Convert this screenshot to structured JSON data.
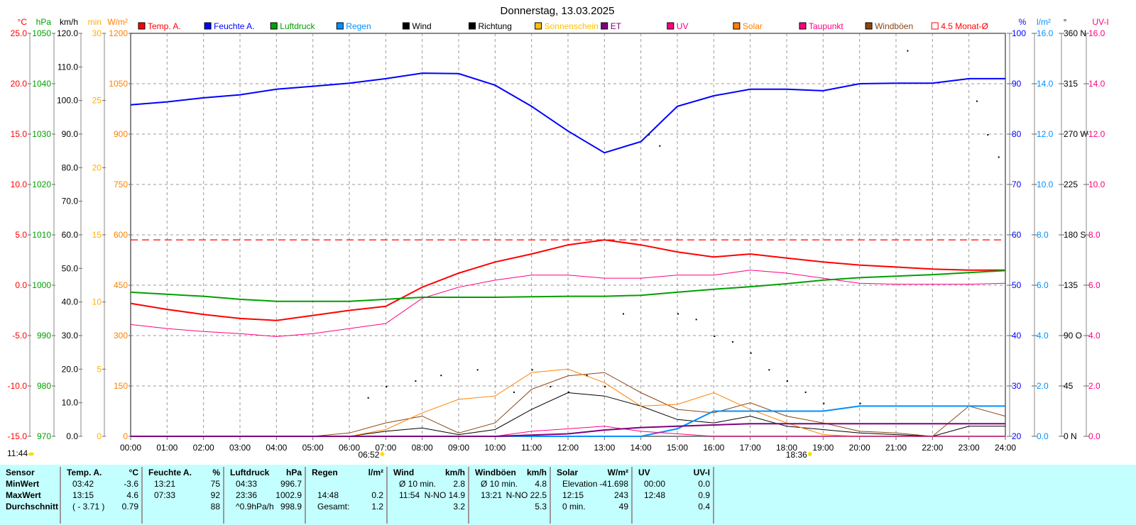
{
  "chart_data": {
    "type": "line",
    "title": "Donnerstag, 13.03.2025",
    "x_label_ticks": [
      "00:00",
      "01:00",
      "02:00",
      "03:00",
      "04:00",
      "05:00",
      "06:00",
      "07:00",
      "08:00",
      "09:00",
      "10:00",
      "11:00",
      "12:00",
      "13:00",
      "14:00",
      "15:00",
      "16:00",
      "17:00",
      "18:00",
      "19:00",
      "20:00",
      "21:00",
      "22:00",
      "23:00",
      "24:00"
    ],
    "axes": {
      "temp": {
        "unit": "°C",
        "color": "#ff0000",
        "range": [
          -15,
          25
        ],
        "ticks": [
          "25.0",
          "20.0",
          "15.0",
          "10.0",
          "5.0",
          "0.0",
          "-5.0",
          "-10.0",
          "-15.0"
        ]
      },
      "pressure": {
        "unit": "hPa",
        "color": "#00a000",
        "range": [
          970,
          1050
        ],
        "ticks": [
          "1050",
          "1040",
          "1030",
          "1020",
          "1010",
          "1000",
          "990",
          "980",
          "970"
        ]
      },
      "wind": {
        "unit": "km/h",
        "color": "#000000",
        "range": [
          0,
          120
        ],
        "ticks": [
          "120.0",
          "110.0",
          "100.0",
          "90.0",
          "80.0",
          "70.0",
          "60.0",
          "50.0",
          "40.0",
          "30.0",
          "20.0",
          "10.0",
          "0.0"
        ]
      },
      "sunshine": {
        "unit": "min",
        "color": "#ffb000",
        "range": [
          0,
          30
        ],
        "ticks": [
          "30",
          "25",
          "20",
          "15",
          "10",
          "5",
          "0"
        ]
      },
      "solar": {
        "unit": "W/m²",
        "color": "#ff8000",
        "range": [
          0,
          1200
        ],
        "ticks": [
          "1200",
          "1050",
          "900",
          "750",
          "600",
          "450",
          "300",
          "150",
          "0"
        ]
      },
      "humidity": {
        "unit": "%",
        "color": "#0000ff",
        "range": [
          20,
          100
        ],
        "ticks": [
          "100",
          "90",
          "80",
          "70",
          "60",
          "50",
          "40",
          "30",
          "20"
        ]
      },
      "rain": {
        "unit": "l/m²",
        "color": "#0090ff",
        "range": [
          0,
          16
        ],
        "ticks": [
          "16.0",
          "14.0",
          "12.0",
          "10.0",
          "8.0",
          "6.0",
          "4.0",
          "2.0",
          "0.0"
        ]
      },
      "direction": {
        "unit": "°",
        "color": "#000000",
        "range": [
          0,
          360
        ],
        "ticks": [
          "360 N",
          "315",
          "270 W",
          "225",
          "180 S",
          "135",
          "90 O",
          "45",
          "0 N"
        ]
      },
      "uv": {
        "unit": "UV-I",
        "color": "#ff0080",
        "range": [
          0,
          16
        ],
        "ticks": [
          "16.0",
          "14.0",
          "12.0",
          "10.0",
          "8.0",
          "6.0",
          "4.0",
          "2.0",
          "0.0"
        ]
      }
    },
    "legend": [
      {
        "label": "Temp. A.",
        "color": "#ff0000"
      },
      {
        "label": "Feuchte A.",
        "color": "#0000ff"
      },
      {
        "label": "Luftdruck",
        "color": "#00a000"
      },
      {
        "label": "Regen",
        "color": "#0090ff"
      },
      {
        "label": "Wind",
        "color": "#000000"
      },
      {
        "label": "Richtung",
        "color": "#000000"
      },
      {
        "label": "Sonnenschein",
        "color": "#ffc000"
      },
      {
        "label": "ET",
        "color": "#800080"
      },
      {
        "label": "UV",
        "color": "#ff0080"
      },
      {
        "label": "Solar",
        "color": "#ff8000"
      },
      {
        "label": "Taupunkt",
        "color": "#ff0080"
      },
      {
        "label": "Windböen",
        "color": "#8b4513"
      },
      {
        "label": "4.5 Monat-Ø",
        "color": "#ff0000",
        "outline": true
      }
    ],
    "hours": [
      0,
      1,
      2,
      3,
      4,
      5,
      6,
      7,
      8,
      9,
      10,
      11,
      12,
      13,
      14,
      15,
      16,
      17,
      18,
      19,
      20,
      21,
      22,
      23,
      24
    ],
    "series": [
      {
        "name": "Temp. A.",
        "axis": "temp",
        "color": "#ff0000",
        "width": 2,
        "values": [
          -1.8,
          -2.4,
          -2.9,
          -3.3,
          -3.5,
          -3.0,
          -2.5,
          -2.1,
          -0.2,
          1.2,
          2.3,
          3.1,
          4.0,
          4.5,
          4.0,
          3.3,
          2.8,
          3.1,
          2.7,
          2.3,
          2.0,
          1.8,
          1.6,
          1.5,
          1.5
        ]
      },
      {
        "name": "Taupunkt",
        "axis": "temp",
        "color": "#ff0080",
        "width": 1,
        "values": [
          -3.9,
          -4.3,
          -4.6,
          -4.8,
          -5.1,
          -4.8,
          -4.3,
          -3.8,
          -1.3,
          -0.2,
          0.5,
          1.0,
          1.0,
          0.7,
          0.7,
          1.0,
          1.0,
          1.5,
          1.2,
          0.7,
          0.2,
          0.1,
          0.1,
          0.1,
          0.2
        ]
      },
      {
        "name": "Feuchte A.",
        "axis": "humidity",
        "color": "#0000ff",
        "width": 2,
        "values": [
          85.8,
          86.4,
          87.2,
          87.8,
          88.9,
          89.5,
          90.1,
          91.0,
          92.1,
          92.0,
          89.7,
          85.5,
          80.6,
          76.3,
          78.5,
          85.5,
          87.6,
          88.9,
          88.9,
          88.6,
          90.0,
          90.1,
          90.1,
          91.0,
          91.0
        ]
      },
      {
        "name": "Luftdruck",
        "axis": "pressure",
        "color": "#00a000",
        "width": 2,
        "values": [
          998.6,
          998.2,
          997.8,
          997.2,
          996.8,
          996.8,
          996.8,
          997.2,
          997.6,
          997.6,
          997.6,
          997.7,
          997.8,
          997.8,
          998.0,
          998.6,
          999.2,
          999.7,
          1000.3,
          1001.0,
          1001.5,
          1001.8,
          1002.1,
          1002.5,
          1002.9
        ]
      },
      {
        "name": "Wind",
        "axis": "wind",
        "color": "#000000",
        "width": 1,
        "values": [
          0,
          0,
          0,
          0,
          0,
          0,
          0,
          1.5,
          2.5,
          0.5,
          2,
          8,
          13,
          12,
          9,
          5,
          4,
          6,
          3,
          2,
          1,
          0.5,
          0,
          3,
          3
        ]
      },
      {
        "name": "Windböen",
        "axis": "wind",
        "color": "#8b4513",
        "width": 1,
        "values": [
          0,
          0,
          0,
          0,
          0,
          0,
          1,
          4,
          6,
          1,
          4,
          14,
          18,
          19,
          13,
          8,
          7,
          10,
          6,
          4,
          1.5,
          1,
          0,
          9,
          6
        ]
      },
      {
        "name": "Solar",
        "axis": "solar",
        "color": "#ff8000",
        "width": 1,
        "values": [
          0,
          0,
          0,
          0,
          0,
          0,
          0,
          20,
          70,
          110,
          120,
          190,
          200,
          160,
          90,
          95,
          130,
          80,
          40,
          5,
          0,
          0,
          0,
          0,
          0
        ]
      },
      {
        "name": "Regen",
        "axis": "rain",
        "color": "#0090ff",
        "width": 2,
        "values": [
          0,
          0,
          0,
          0,
          0,
          0,
          0,
          0,
          0,
          0,
          0,
          0,
          0,
          0,
          0,
          0.3,
          1.0,
          1.0,
          1.0,
          1.0,
          1.2,
          1.2,
          1.2,
          1.2,
          1.2
        ]
      },
      {
        "name": "UV",
        "axis": "uv",
        "color": "#ff0080",
        "width": 1,
        "values": [
          0,
          0,
          0,
          0,
          0,
          0,
          0,
          0,
          0,
          0,
          0,
          0.2,
          0.3,
          0.4,
          0.2,
          0.1,
          0,
          0,
          0,
          0,
          0,
          0,
          0,
          0,
          0
        ]
      },
      {
        "name": "ET",
        "axis": "uv",
        "color": "#800080",
        "width": 2,
        "values": [
          0,
          0,
          0,
          0,
          0,
          0,
          0,
          0,
          0,
          0,
          0,
          0.05,
          0.1,
          0.25,
          0.35,
          0.4,
          0.45,
          0.5,
          0.5,
          0.5,
          0.5,
          0.5,
          0.5,
          0.5,
          0.5
        ]
      }
    ],
    "direction_points": {
      "hours": [
        6.5,
        7,
        7.8,
        8.5,
        9.5,
        10.5,
        11,
        11.5,
        12,
        12.5,
        13,
        13.5,
        14.2,
        14.5,
        15,
        15.5,
        16,
        16.5,
        17,
        17.5,
        18,
        18.5,
        19,
        20,
        21.3,
        23.2,
        23.5,
        23.8
      ],
      "values": [
        35,
        45,
        50,
        55,
        60,
        40,
        60,
        45,
        40,
        55,
        45,
        110,
        270,
        260,
        110,
        105,
        90,
        85,
        75,
        60,
        50,
        40,
        30,
        30,
        345,
        300,
        270,
        250
      ]
    },
    "reference_line": {
      "label": "4.5 Monat-Ø",
      "axis": "temp",
      "value": 4.5
    },
    "sunrise": "06:52",
    "sunset": "18:36",
    "corner_time": "11:44"
  },
  "table": {
    "columns": [
      {
        "head": [
          "Sensor",
          ""
        ],
        "rows": [
          [
            "MinWert",
            ""
          ],
          [
            "MaxWert",
            ""
          ],
          [
            "Durchschnitt",
            ""
          ]
        ],
        "bold_first": true
      },
      {
        "head": [
          "Temp. A.",
          "°C"
        ],
        "rows": [
          [
            "03:42",
            "-3.6"
          ],
          [
            "13:15",
            "4.6"
          ],
          [
            "( - 3.71 )",
            "0.79"
          ]
        ]
      },
      {
        "head": [
          "Feuchte A.",
          "%"
        ],
        "rows": [
          [
            "13:21",
            "75"
          ],
          [
            "07:33",
            "92"
          ],
          [
            "",
            "88"
          ]
        ]
      },
      {
        "head": [
          "Luftdruck",
          "hPa"
        ],
        "rows": [
          [
            "04:33",
            "996.7"
          ],
          [
            "23:36",
            "1002.9"
          ],
          [
            "^0.9hPa/h",
            "998.9"
          ]
        ]
      },
      {
        "head": [
          "Regen",
          "l/m²"
        ],
        "rows": [
          [
            "",
            ""
          ],
          [
            "14:48",
            "0.2"
          ],
          [
            "Gesamt:",
            "1.2"
          ]
        ]
      },
      {
        "head": [
          "Wind",
          "km/h"
        ],
        "rows": [
          [
            "Ø 10 min.",
            "2.8"
          ],
          [
            "11:54",
            "N-NO 14.9"
          ],
          [
            "",
            "3.2"
          ]
        ]
      },
      {
        "head": [
          "Windböen",
          "km/h"
        ],
        "rows": [
          [
            "Ø 10 min.",
            "4.8"
          ],
          [
            "13:21",
            "N-NO 22.5"
          ],
          [
            "",
            "5.3"
          ]
        ]
      },
      {
        "head": [
          "Solar",
          "W/m²"
        ],
        "rows": [
          [
            "Elevation",
            "-41.698"
          ],
          [
            "12:15",
            "243"
          ],
          [
            "0 min.",
            "49"
          ]
        ]
      },
      {
        "head": [
          "UV",
          "UV-I"
        ],
        "rows": [
          [
            "00:00",
            "0.0"
          ],
          [
            "12:48",
            "0.9"
          ],
          [
            "",
            "0.4"
          ]
        ]
      }
    ]
  }
}
